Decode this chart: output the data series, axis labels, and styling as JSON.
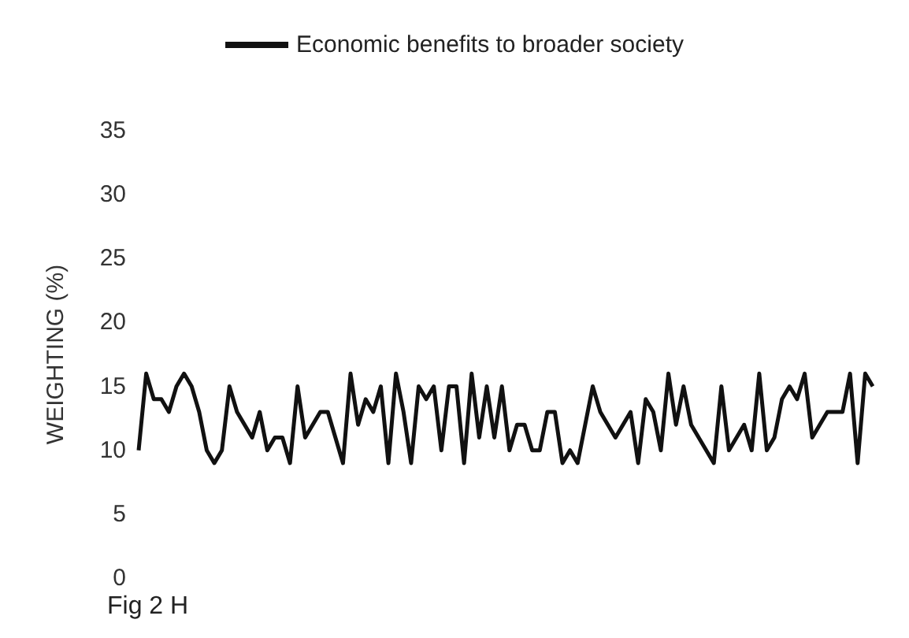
{
  "chart_data": {
    "type": "line",
    "ylabel": "WEIGHTING (%)",
    "annotations": [
      "Fig 2 H"
    ],
    "legend": "top",
    "grid": false,
    "marker": "none",
    "line_style": "solid",
    "ylim": [
      0,
      35
    ],
    "yticks": [
      0,
      5,
      10,
      15,
      20,
      25,
      30,
      35
    ],
    "categories": [
      null,
      null,
      null,
      null,
      null,
      null,
      null,
      null,
      null,
      null,
      null,
      null,
      null,
      null,
      null,
      null,
      null,
      null,
      null,
      null,
      null,
      null,
      null,
      null,
      null,
      null,
      null,
      null,
      null,
      null,
      null,
      null,
      null,
      null,
      null,
      null,
      null,
      null,
      null,
      null,
      null,
      null,
      null,
      null,
      null,
      null,
      null,
      null,
      null,
      null,
      null,
      null,
      null,
      null,
      null,
      null,
      null,
      null,
      null,
      null,
      null,
      null,
      null,
      null,
      null,
      null,
      null,
      null,
      null,
      null,
      null,
      null,
      null,
      null,
      null,
      null,
      null,
      null,
      null,
      null,
      null,
      null,
      null,
      null,
      null,
      null,
      null,
      null,
      null,
      null,
      null,
      null,
      null,
      null,
      null,
      null,
      null,
      null
    ],
    "series": [
      {
        "name": "Economic benefits to broader society",
        "color": "#111111",
        "values": [
          10,
          16,
          14,
          14,
          13,
          15,
          16,
          15,
          13,
          10,
          9,
          10,
          15,
          13,
          12,
          11,
          13,
          10,
          11,
          11,
          9,
          15,
          11,
          12,
          13,
          13,
          11,
          9,
          16,
          12,
          14,
          13,
          15,
          9,
          16,
          13,
          9,
          15,
          14,
          15,
          10,
          15,
          15,
          9,
          16,
          11,
          15,
          11,
          15,
          10,
          12,
          12,
          10,
          10,
          13,
          13,
          9,
          10,
          9,
          12,
          15,
          13,
          12,
          11,
          12,
          13,
          9,
          14,
          13,
          10,
          16,
          12,
          15,
          12,
          11,
          10,
          9,
          15,
          10,
          11,
          12,
          10,
          16,
          10,
          11,
          14,
          15,
          14,
          16,
          11,
          12,
          13,
          13,
          13,
          16,
          9,
          16,
          15
        ]
      }
    ]
  }
}
